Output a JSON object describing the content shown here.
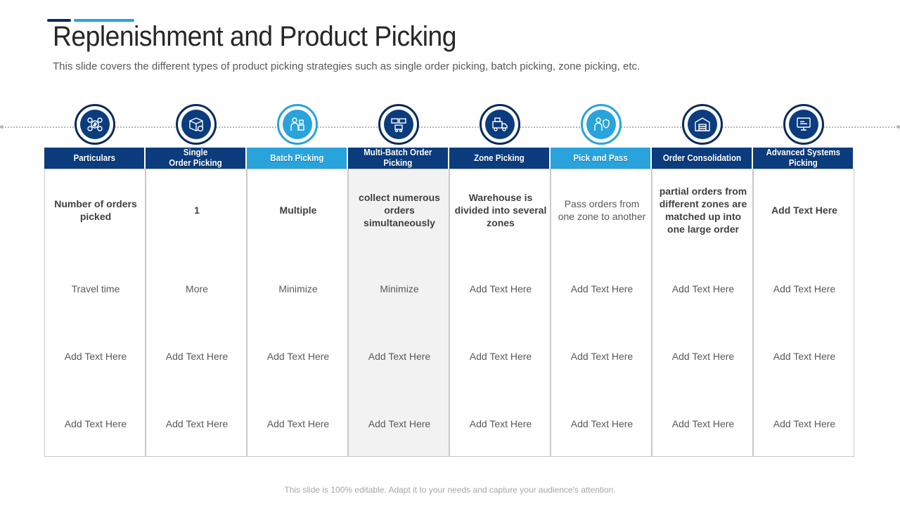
{
  "slide": {
    "title": "Replenishment and Product Picking",
    "subtitle": "This slide covers the different types of product picking strategies such as single order picking, batch picking, zone picking, etc.",
    "footer": "This slide is 100% editable. Adapt it to your needs and capture your audience's attention."
  },
  "colors": {
    "dark_blue": "#0b3c7d",
    "light_blue": "#29a3dc",
    "shaded": "#f2f2f2"
  },
  "columns": [
    {
      "header": "Particulars",
      "icon": "money-gears-icon",
      "style": "dark",
      "cells": [
        "Number of orders picked",
        "Travel time",
        "Add Text Here",
        "Add Text Here"
      ]
    },
    {
      "header": "Single\nOrder Picking",
      "icon": "package-box-icon",
      "style": "dark",
      "cells": [
        "1",
        "More",
        "Add Text Here",
        "Add Text Here"
      ]
    },
    {
      "header": "Batch Picking",
      "icon": "worker-boxes-icon",
      "style": "light",
      "cells": [
        "Multiple",
        "Minimize",
        "Add Text Here",
        "Add Text Here"
      ]
    },
    {
      "header": "Multi-Batch Order\nPicking",
      "icon": "stacked-trucks-icon",
      "style": "dark",
      "cells": [
        "collect numerous orders simultaneously",
        "Minimize",
        "Add Text Here",
        "Add Text Here"
      ]
    },
    {
      "header": "Zone Picking",
      "icon": "delivery-truck-icon",
      "style": "dark",
      "cells": [
        "Warehouse is divided into several zones",
        "Add Text Here",
        "Add Text Here",
        "Add Text Here"
      ]
    },
    {
      "header": "Pick and Pass",
      "icon": "worker-shield-icon",
      "style": "light",
      "cells": [
        "Pass orders from one zone to another",
        "Add Text Here",
        "Add Text Here",
        "Add Text Here"
      ]
    },
    {
      "header": "Order Consolidation",
      "icon": "warehouse-icon",
      "style": "dark",
      "cells": [
        "partial orders from different zones are matched up into one large order",
        "Add Text Here",
        "Add Text Here",
        "Add Text Here"
      ]
    },
    {
      "header": "Advanced Systems\nPicking",
      "icon": "computer-system-icon",
      "style": "dark",
      "cells": [
        "Add Text Here",
        "Add Text Here",
        "Add Text Here",
        "Add Text Here"
      ]
    }
  ]
}
